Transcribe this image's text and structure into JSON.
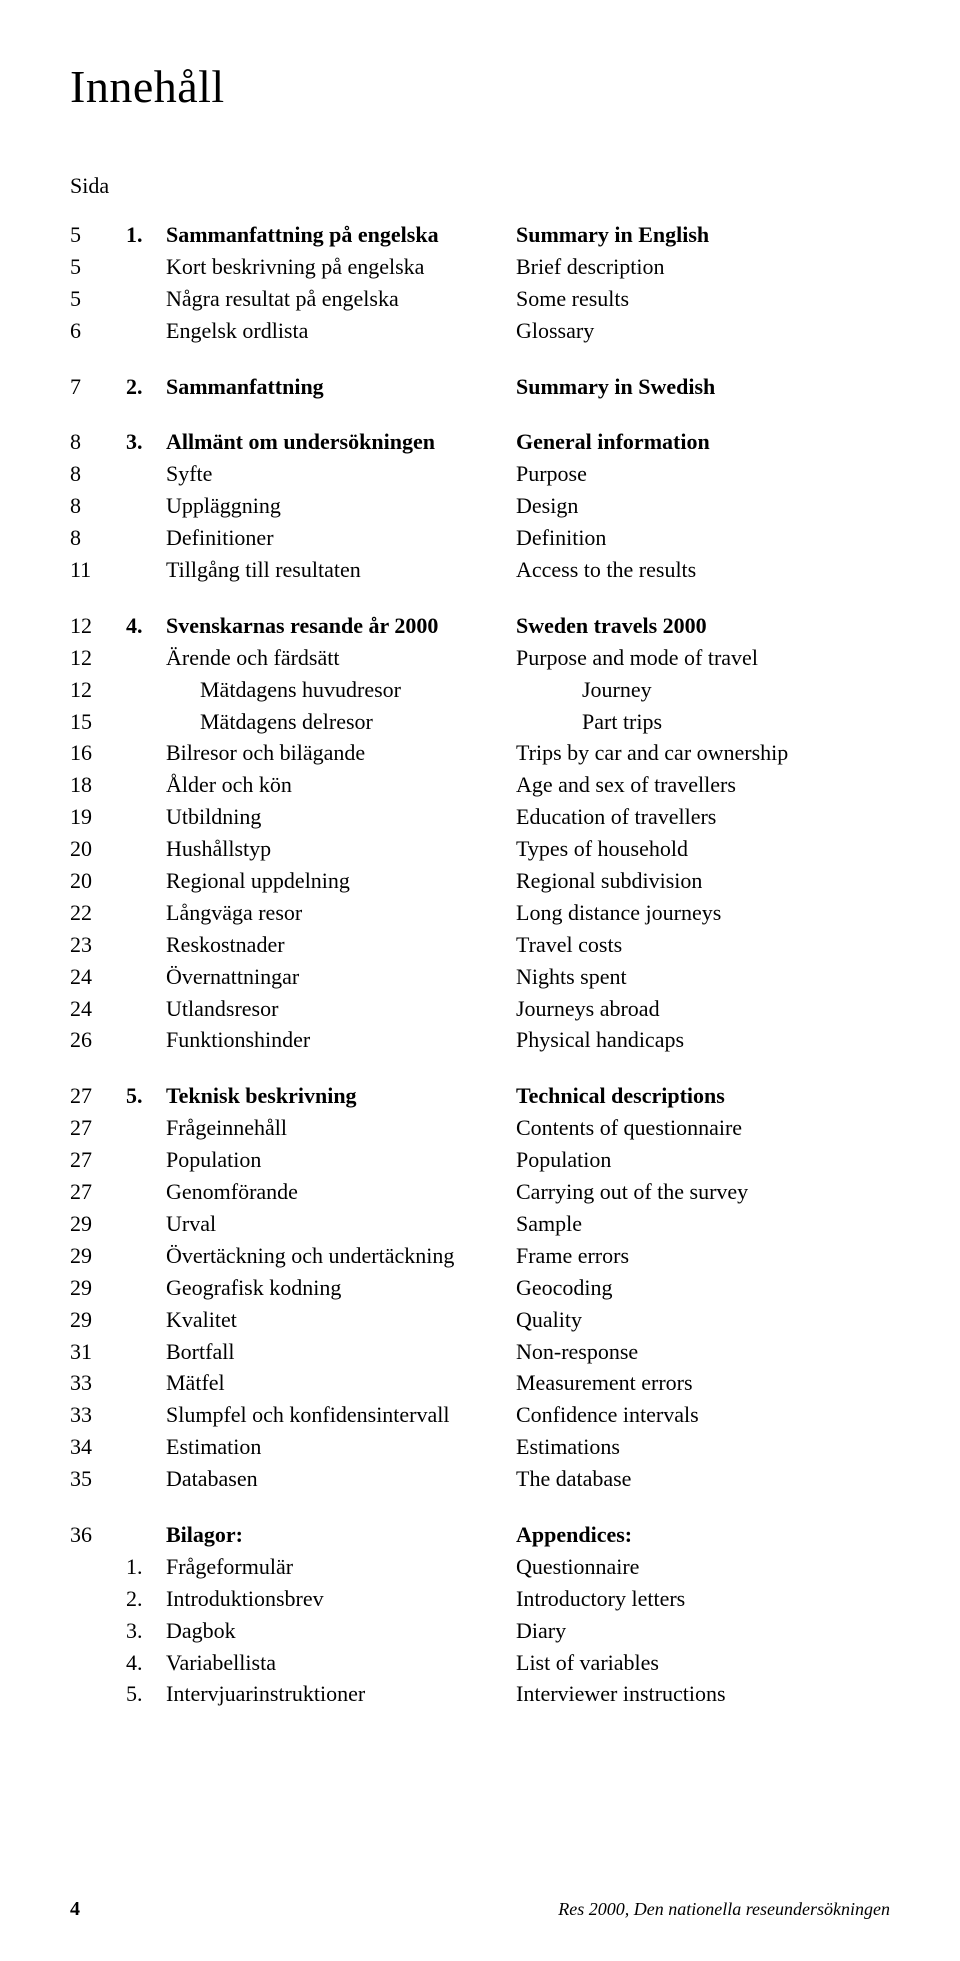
{
  "title": "Innehåll",
  "sida_label": "Sida",
  "sections": {
    "s1": {
      "num": "1.",
      "rows": [
        {
          "p": "5",
          "n": "1.",
          "sv": "Sammanfattning på engelska",
          "en": "Summary in English",
          "bold": true
        },
        {
          "p": "5",
          "n": "",
          "sv": "Kort beskrivning på engelska",
          "en": "Brief description"
        },
        {
          "p": "5",
          "n": "",
          "sv": "Några resultat på engelska",
          "en": "Some results"
        },
        {
          "p": "6",
          "n": "",
          "sv": "Engelsk ordlista",
          "en": "Glossary"
        }
      ]
    },
    "s2": {
      "rows": [
        {
          "p": "7",
          "n": "2.",
          "sv": "Sammanfattning",
          "en": "Summary in Swedish",
          "bold": true
        }
      ]
    },
    "s3": {
      "rows": [
        {
          "p": "8",
          "n": "3.",
          "sv": "Allmänt om undersökningen",
          "en": "General information",
          "bold": true
        },
        {
          "p": "8",
          "n": "",
          "sv": "Syfte",
          "en": "Purpose"
        },
        {
          "p": "8",
          "n": "",
          "sv": "Uppläggning",
          "en": "Design"
        },
        {
          "p": "8",
          "n": "",
          "sv": "Definitioner",
          "en": "Definition"
        },
        {
          "p": "11",
          "n": "",
          "sv": "Tillgång till resultaten",
          "en": "Access to the results"
        }
      ]
    },
    "s4": {
      "rows": [
        {
          "p": "12",
          "n": "4.",
          "sv": "Svenskarnas resande år 2000",
          "en": "Sweden travels 2000",
          "bold": true
        },
        {
          "p": "12",
          "n": "",
          "sv": "Ärende och färdsätt",
          "en": "Purpose and mode of travel"
        },
        {
          "p": "12",
          "n": "",
          "sv": "Mätdagens huvudresor",
          "en": "Journey",
          "sub": true
        },
        {
          "p": "15",
          "n": "",
          "sv": "Mätdagens delresor",
          "en": "Part trips",
          "sub": true
        },
        {
          "p": "16",
          "n": "",
          "sv": "Bilresor och bilägande",
          "en": "Trips by car and car ownership"
        },
        {
          "p": "18",
          "n": "",
          "sv": "Ålder och kön",
          "en": "Age and sex of travellers"
        },
        {
          "p": "19",
          "n": "",
          "sv": "Utbildning",
          "en": "Education of travellers"
        },
        {
          "p": "20",
          "n": "",
          "sv": "Hushållstyp",
          "en": "Types of household"
        },
        {
          "p": "20",
          "n": "",
          "sv": "Regional uppdelning",
          "en": "Regional subdivision"
        },
        {
          "p": "22",
          "n": "",
          "sv": "Långväga resor",
          "en": "Long distance journeys"
        },
        {
          "p": "23",
          "n": "",
          "sv": "Reskostnader",
          "en": "Travel costs"
        },
        {
          "p": "24",
          "n": "",
          "sv": "Övernattningar",
          "en": "Nights spent"
        },
        {
          "p": "24",
          "n": "",
          "sv": "Utlandsresor",
          "en": "Journeys abroad"
        },
        {
          "p": "26",
          "n": "",
          "sv": "Funktionshinder",
          "en": "Physical handicaps"
        }
      ]
    },
    "s5": {
      "rows": [
        {
          "p": "27",
          "n": "5.",
          "sv": "Teknisk beskrivning",
          "en": "Technical descriptions",
          "bold": true
        },
        {
          "p": "27",
          "n": "",
          "sv": "Frågeinnehåll",
          "en": "Contents of questionnaire"
        },
        {
          "p": "27",
          "n": "",
          "sv": "Population",
          "en": "Population"
        },
        {
          "p": "27",
          "n": "",
          "sv": "Genomförande",
          "en": "Carrying out of the survey"
        },
        {
          "p": "29",
          "n": "",
          "sv": "Urval",
          "en": "Sample"
        },
        {
          "p": "29",
          "n": "",
          "sv": "Övertäckning och undertäckning",
          "en": "Frame errors"
        },
        {
          "p": "29",
          "n": "",
          "sv": "Geografisk kodning",
          "en": "Geocoding"
        },
        {
          "p": "29",
          "n": "",
          "sv": "Kvalitet",
          "en": "Quality"
        },
        {
          "p": "31",
          "n": "",
          "sv": "Bortfall",
          "en": "Non-response"
        },
        {
          "p": "33",
          "n": "",
          "sv": "Mätfel",
          "en": "Measurement errors"
        },
        {
          "p": "33",
          "n": "",
          "sv": "Slumpfel och konfidensintervall",
          "en": "Confidence intervals"
        },
        {
          "p": "34",
          "n": "",
          "sv": "Estimation",
          "en": "Estimations"
        },
        {
          "p": "35",
          "n": "",
          "sv": "Databasen",
          "en": "The database"
        }
      ]
    },
    "s6": {
      "rows": [
        {
          "p": "36",
          "n": "",
          "sv": "Bilagor:",
          "en": "Appendices:",
          "bold": true
        },
        {
          "p": "",
          "n": "1.",
          "sv": "Frågeformulär",
          "en": "Questionnaire"
        },
        {
          "p": "",
          "n": "2.",
          "sv": "Introduktionsbrev",
          "en": "Introductory letters"
        },
        {
          "p": "",
          "n": "3.",
          "sv": "Dagbok",
          "en": "Diary"
        },
        {
          "p": "",
          "n": "4.",
          "sv": "Variabellista",
          "en": "List of variables"
        },
        {
          "p": "",
          "n": "5.",
          "sv": "Intervjuarinstruktioner",
          "en": "Interviewer instructions"
        }
      ]
    }
  },
  "footer": {
    "page": "4",
    "text": "Res 2000, Den nationella reseundersökningen"
  }
}
